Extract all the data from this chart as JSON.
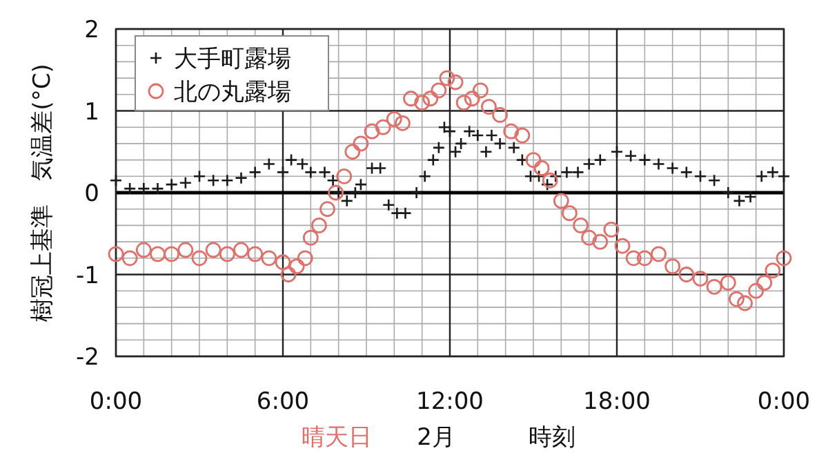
{
  "chart_data": {
    "type": "scatter",
    "ylabel": "樹冠上基準　気温差(°C)",
    "xlabel": "時刻",
    "annotations": [
      "晴天日",
      "2月"
    ],
    "xlim": [
      0,
      24
    ],
    "ylim": [
      -2,
      2
    ],
    "xticks": [
      {
        "value": 0,
        "label": "0:00"
      },
      {
        "value": 6,
        "label": "6:00"
      },
      {
        "value": 12,
        "label": "12:00"
      },
      {
        "value": 18,
        "label": "18:00"
      },
      {
        "value": 24,
        "label": "0:00"
      }
    ],
    "yticks": [
      -2,
      -1,
      0,
      1,
      2
    ],
    "grid": true,
    "legend": "top left",
    "ref_lines": [
      {
        "axis": "y",
        "value": 0,
        "color": "#000000"
      }
    ],
    "series": [
      {
        "name": "大手町露場",
        "color": "#1a1a1a",
        "marker": "cross",
        "x": [
          0,
          0.5,
          1,
          1.5,
          2,
          2.5,
          3,
          3.5,
          4,
          4.5,
          5,
          5.5,
          6,
          6.3,
          6.7,
          7,
          7.5,
          7.8,
          8,
          8.3,
          8.6,
          8.8,
          9.2,
          9.5,
          9.8,
          10.1,
          10.4,
          10.8,
          11.1,
          11.4,
          11.6,
          11.8,
          12,
          12.2,
          12.4,
          12.7,
          13,
          13.3,
          13.5,
          13.8,
          14.3,
          14.6,
          14.9,
          15.2,
          15.5,
          15.8,
          16.2,
          16.6,
          17,
          17.4,
          18,
          18.5,
          19,
          19.5,
          20,
          20.5,
          21,
          21.5,
          22,
          22.4,
          22.8,
          23.2,
          23.6,
          24
        ],
        "values": [
          0.15,
          0.05,
          0.05,
          0.05,
          0.1,
          0.12,
          0.2,
          0.15,
          0.15,
          0.18,
          0.25,
          0.35,
          0.25,
          0.4,
          0.35,
          0.25,
          0.25,
          0.15,
          0.0,
          -0.1,
          0.0,
          0.1,
          0.3,
          0.3,
          -0.15,
          -0.25,
          -0.25,
          0.0,
          0.2,
          0.4,
          0.55,
          0.8,
          0.75,
          0.5,
          0.6,
          0.75,
          0.7,
          0.5,
          0.7,
          0.6,
          0.55,
          0.4,
          0.2,
          0.2,
          0.1,
          0.2,
          0.25,
          0.25,
          0.35,
          0.4,
          0.5,
          0.45,
          0.4,
          0.35,
          0.3,
          0.25,
          0.2,
          0.15,
          0.0,
          -0.1,
          -0.05,
          0.2,
          0.25,
          0.2
        ]
      },
      {
        "name": "北の丸露場",
        "color": "#e0706a",
        "marker": "circle",
        "x": [
          0,
          0.5,
          1,
          1.5,
          2,
          2.5,
          3,
          3.5,
          4,
          4.5,
          5,
          5.5,
          6,
          6.2,
          6.5,
          6.8,
          7,
          7.3,
          7.6,
          7.9,
          8.2,
          8.5,
          8.8,
          9.2,
          9.6,
          10,
          10.3,
          10.6,
          11,
          11.3,
          11.6,
          11.9,
          12.2,
          12.5,
          12.8,
          13.1,
          13.4,
          13.8,
          14.2,
          14.6,
          15,
          15.3,
          15.6,
          16,
          16.3,
          16.7,
          17,
          17.4,
          17.8,
          18.2,
          18.6,
          19,
          19.5,
          20,
          20.5,
          21,
          21.5,
          22,
          22.3,
          22.6,
          23,
          23.3,
          23.6,
          24
        ],
        "values": [
          -0.75,
          -0.8,
          -0.7,
          -0.75,
          -0.75,
          -0.7,
          -0.8,
          -0.7,
          -0.75,
          -0.7,
          -0.75,
          -0.8,
          -0.85,
          -1.0,
          -0.9,
          -0.8,
          -0.55,
          -0.4,
          -0.2,
          0.0,
          0.2,
          0.5,
          0.6,
          0.75,
          0.8,
          0.9,
          0.85,
          1.15,
          1.1,
          1.15,
          1.25,
          1.4,
          1.35,
          1.1,
          1.15,
          1.25,
          1.05,
          0.95,
          0.75,
          0.7,
          0.4,
          0.3,
          0.15,
          -0.1,
          -0.25,
          -0.4,
          -0.55,
          -0.6,
          -0.45,
          -0.65,
          -0.8,
          -0.8,
          -0.75,
          -0.9,
          -1.0,
          -1.05,
          -1.15,
          -1.1,
          -1.3,
          -1.35,
          -1.2,
          -1.1,
          -0.95,
          -0.8
        ]
      }
    ]
  }
}
